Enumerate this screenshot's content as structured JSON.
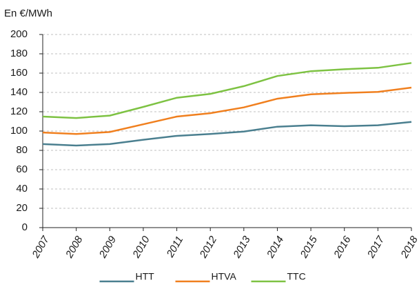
{
  "chart_data": {
    "type": "line",
    "y_label": "En €/MWh",
    "categories": [
      "2007",
      "2008",
      "2009",
      "2010",
      "2011",
      "2012",
      "2013",
      "2014",
      "2015",
      "2016",
      "2017",
      "2018"
    ],
    "series": [
      {
        "name": "HTT",
        "color": "#4a7f8f",
        "values": [
          86.5,
          85,
          86.5,
          91,
          95,
          97,
          99.5,
          104.5,
          106,
          105,
          106,
          109.5
        ]
      },
      {
        "name": "HTVA",
        "color": "#f07f1e",
        "values": [
          98.5,
          97,
          99,
          107,
          115,
          118.5,
          124.5,
          133.5,
          138,
          139.5,
          140.5,
          145
        ]
      },
      {
        "name": "TTC",
        "color": "#7dc242",
        "values": [
          115,
          113.5,
          116,
          125,
          134.5,
          138.5,
          146.5,
          157,
          162,
          164,
          165.5,
          170.5
        ]
      }
    ],
    "ylim": [
      0,
      200
    ],
    "yticks": [
      0,
      20,
      40,
      60,
      80,
      100,
      120,
      140,
      160,
      180,
      200
    ],
    "grid": true,
    "legend": "bottom"
  }
}
